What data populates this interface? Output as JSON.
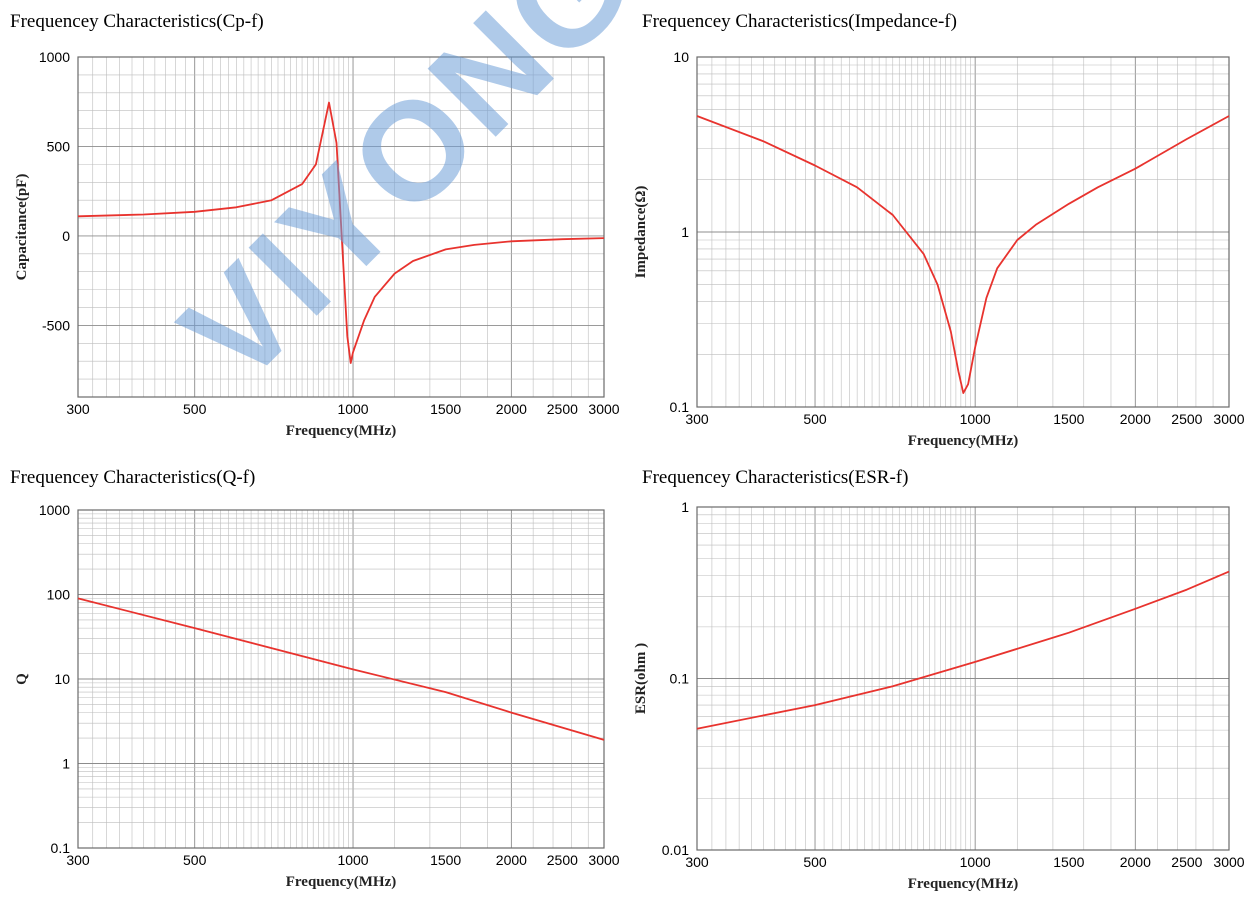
{
  "watermark": "VIYONG",
  "colors": {
    "curve": "#e8332e",
    "grid": "#bdbdbd",
    "frame": "#6a6a6a"
  },
  "chart_data": [
    {
      "type": "line",
      "title": "Frequencey Characteristics(Cp-f)",
      "xlabel": "Frequency(MHz)",
      "ylabel": "Capacitance(pF)",
      "xscale": "log",
      "yscale": "linear",
      "xlim": [
        300,
        3000
      ],
      "ylim": [
        -900,
        1000
      ],
      "xticks": [
        {
          "v": 300,
          "label": "300"
        },
        {
          "v": 500,
          "label": "500"
        },
        {
          "v": 1000,
          "label": "1000"
        },
        {
          "v": 1500,
          "label": "1500"
        },
        {
          "v": 2000,
          "label": "2000"
        },
        {
          "v": 2500,
          "label": "2500"
        },
        {
          "v": 3000,
          "label": "3000"
        }
      ],
      "yticks": [
        {
          "v": 1000,
          "label": "1000"
        },
        {
          "v": 500,
          "label": "500"
        },
        {
          "v": 0,
          "label": "0"
        },
        {
          "v": -500,
          "label": "-500"
        }
      ],
      "grid": true,
      "series": [
        {
          "x": [
            300,
            400,
            500,
            600,
            700,
            800,
            850,
            900,
            930,
            960,
            975,
            990,
            1000,
            1050,
            1100,
            1200,
            1300,
            1500,
            1700,
            2000,
            2500,
            3000
          ],
          "y": [
            110,
            120,
            135,
            160,
            200,
            290,
            400,
            745,
            520,
            -200,
            -560,
            -710,
            -650,
            -470,
            -340,
            -210,
            -140,
            -75,
            -50,
            -30,
            -18,
            -12
          ]
        }
      ]
    },
    {
      "type": "line",
      "title": "Frequencey Characteristics(Impedance-f)",
      "xlabel": "Frequency(MHz)",
      "ylabel": "Impedance(Ω)",
      "xscale": "log",
      "yscale": "log",
      "xlim": [
        300,
        3000
      ],
      "ylim": [
        0.1,
        10
      ],
      "xticks": [
        {
          "v": 300,
          "label": "300"
        },
        {
          "v": 500,
          "label": "500"
        },
        {
          "v": 1000,
          "label": "1000"
        },
        {
          "v": 1500,
          "label": "1500"
        },
        {
          "v": 2000,
          "label": "2000"
        },
        {
          "v": 2500,
          "label": "2500"
        },
        {
          "v": 3000,
          "label": "3000"
        }
      ],
      "yticks": [
        {
          "v": 10,
          "label": "10"
        },
        {
          "v": 1,
          "label": "1"
        },
        {
          "v": 0.1,
          "label": "0.1"
        }
      ],
      "grid": true,
      "series": [
        {
          "x": [
            300,
            400,
            500,
            600,
            700,
            800,
            850,
            900,
            930,
            950,
            970,
            1000,
            1050,
            1100,
            1200,
            1300,
            1500,
            1700,
            2000,
            2500,
            3000
          ],
          "y": [
            4.6,
            3.3,
            2.4,
            1.8,
            1.25,
            0.75,
            0.5,
            0.27,
            0.16,
            0.12,
            0.135,
            0.22,
            0.42,
            0.62,
            0.9,
            1.1,
            1.45,
            1.8,
            2.3,
            3.4,
            4.6
          ]
        }
      ]
    },
    {
      "type": "line",
      "title": "Frequencey Characteristics(Q-f)",
      "xlabel": "Frequency(MHz)",
      "ylabel": "Q",
      "xscale": "log",
      "yscale": "log",
      "xlim": [
        300,
        3000
      ],
      "ylim": [
        0.1,
        1000
      ],
      "xticks": [
        {
          "v": 300,
          "label": "300"
        },
        {
          "v": 500,
          "label": "500"
        },
        {
          "v": 1000,
          "label": "1000"
        },
        {
          "v": 1500,
          "label": "1500"
        },
        {
          "v": 2000,
          "label": "2000"
        },
        {
          "v": 2500,
          "label": "2500"
        },
        {
          "v": 3000,
          "label": "3000"
        }
      ],
      "yticks": [
        {
          "v": 1000,
          "label": "1000"
        },
        {
          "v": 100,
          "label": "100"
        },
        {
          "v": 10,
          "label": "10"
        },
        {
          "v": 1,
          "label": "1"
        },
        {
          "v": 0.1,
          "label": "0.1"
        }
      ],
      "grid": true,
      "series": [
        {
          "x": [
            300,
            500,
            1000,
            1500,
            2000,
            3000
          ],
          "y": [
            90,
            40,
            13,
            7,
            4,
            1.9
          ]
        }
      ]
    },
    {
      "type": "line",
      "title": "Frequencey Characteristics(ESR-f)",
      "xlabel": "Frequency(MHz)",
      "ylabel": "ESR(ohm )",
      "xscale": "log",
      "yscale": "log",
      "xlim": [
        300,
        3000
      ],
      "ylim": [
        0.01,
        1
      ],
      "xticks": [
        {
          "v": 300,
          "label": "300"
        },
        {
          "v": 500,
          "label": "500"
        },
        {
          "v": 1000,
          "label": "1000"
        },
        {
          "v": 1500,
          "label": "1500"
        },
        {
          "v": 2000,
          "label": "2000"
        },
        {
          "v": 2500,
          "label": "2500"
        },
        {
          "v": 3000,
          "label": "3000"
        }
      ],
      "yticks": [
        {
          "v": 1,
          "label": "1"
        },
        {
          "v": 0.1,
          "label": "0.1"
        },
        {
          "v": 0.01,
          "label": "0.01"
        }
      ],
      "grid": true,
      "series": [
        {
          "x": [
            300,
            500,
            700,
            1000,
            1500,
            2000,
            2500,
            3000
          ],
          "y": [
            0.051,
            0.07,
            0.09,
            0.125,
            0.185,
            0.255,
            0.33,
            0.42
          ]
        }
      ]
    }
  ]
}
